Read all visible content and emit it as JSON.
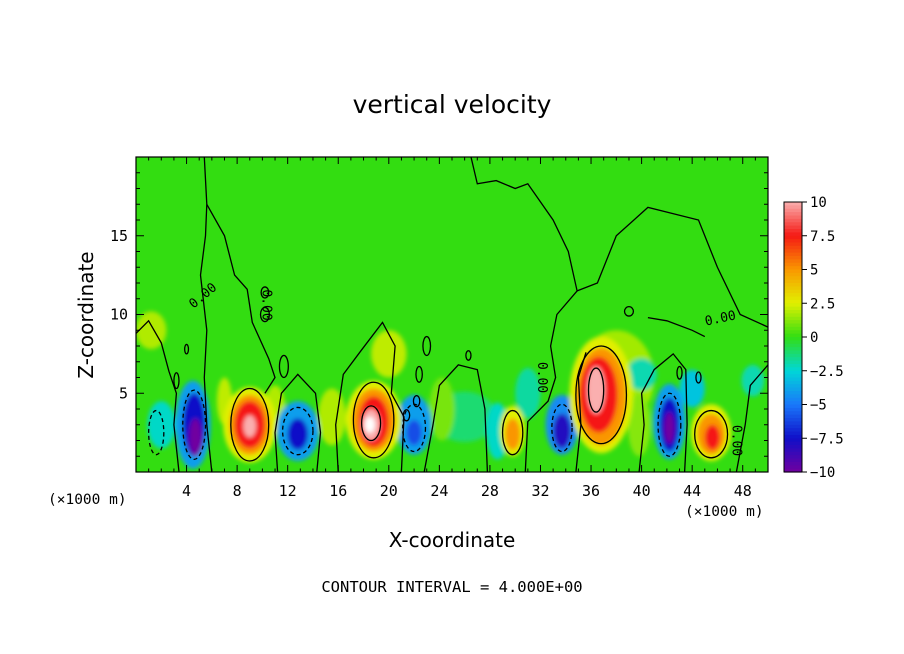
{
  "chart_data": {
    "type": "heatmap",
    "title": "vertical velocity",
    "xlabel": "X-coordinate",
    "ylabel": "Z-coordinate",
    "x_unit_left": "(×1000 m)",
    "x_unit_right": "(×1000 m)",
    "footer": "CONTOUR INTERVAL = 4.000E+00",
    "xlim": [
      0,
      50
    ],
    "ylim": [
      0,
      20
    ],
    "x_ticks": [
      4,
      8,
      12,
      16,
      20,
      24,
      28,
      32,
      36,
      40,
      44,
      48
    ],
    "y_ticks": [
      5,
      10,
      15
    ],
    "colorbar": {
      "min": -10,
      "max": 10,
      "tick_values": [
        10,
        7.5,
        5,
        2.5,
        0,
        -2.5,
        -5,
        -7.5,
        -10
      ],
      "tick_labels": [
        "10",
        "7.5",
        "5",
        "2.5",
        "0",
        "−2.5",
        "−5",
        "−7.5",
        "−10"
      ]
    },
    "contour_labels": [
      {
        "text": "0.00",
        "x": 5.5,
        "y": 11.0,
        "angle": -40
      },
      {
        "text": "0.00",
        "x": 10.0,
        "y": 10.6,
        "angle": 90
      },
      {
        "text": "0.00",
        "x": 31.8,
        "y": 6.0,
        "angle": 90
      },
      {
        "text": "0.00",
        "x": 46.3,
        "y": 9.5,
        "angle": -12
      },
      {
        "text": "0.00",
        "x": 47.2,
        "y": 2.0,
        "angle": 90
      }
    ],
    "features": [
      {
        "type": "updraft",
        "x": 9.0,
        "z": 3.0,
        "peak": 10
      },
      {
        "type": "updraft",
        "x": 18.8,
        "z": 3.3,
        "peak": 12
      },
      {
        "type": "updraft",
        "x": 36.8,
        "z": 5.0,
        "peak": 10
      },
      {
        "type": "updraft",
        "x": 45.5,
        "z": 2.5,
        "peak": 8
      },
      {
        "type": "updraft",
        "x": 29.8,
        "z": 2.5,
        "peak": 5
      },
      {
        "type": "downdraft",
        "x": 4.5,
        "z": 2.8,
        "peak": -12
      },
      {
        "type": "downdraft",
        "x": 42.2,
        "z": 3.0,
        "peak": -10
      },
      {
        "type": "downdraft",
        "x": 33.7,
        "z": 2.8,
        "peak": -7
      },
      {
        "type": "downdraft",
        "x": 12.8,
        "z": 2.5,
        "peak": -6
      },
      {
        "type": "downdraft",
        "x": 22.0,
        "z": 2.8,
        "peak": -5
      }
    ]
  }
}
